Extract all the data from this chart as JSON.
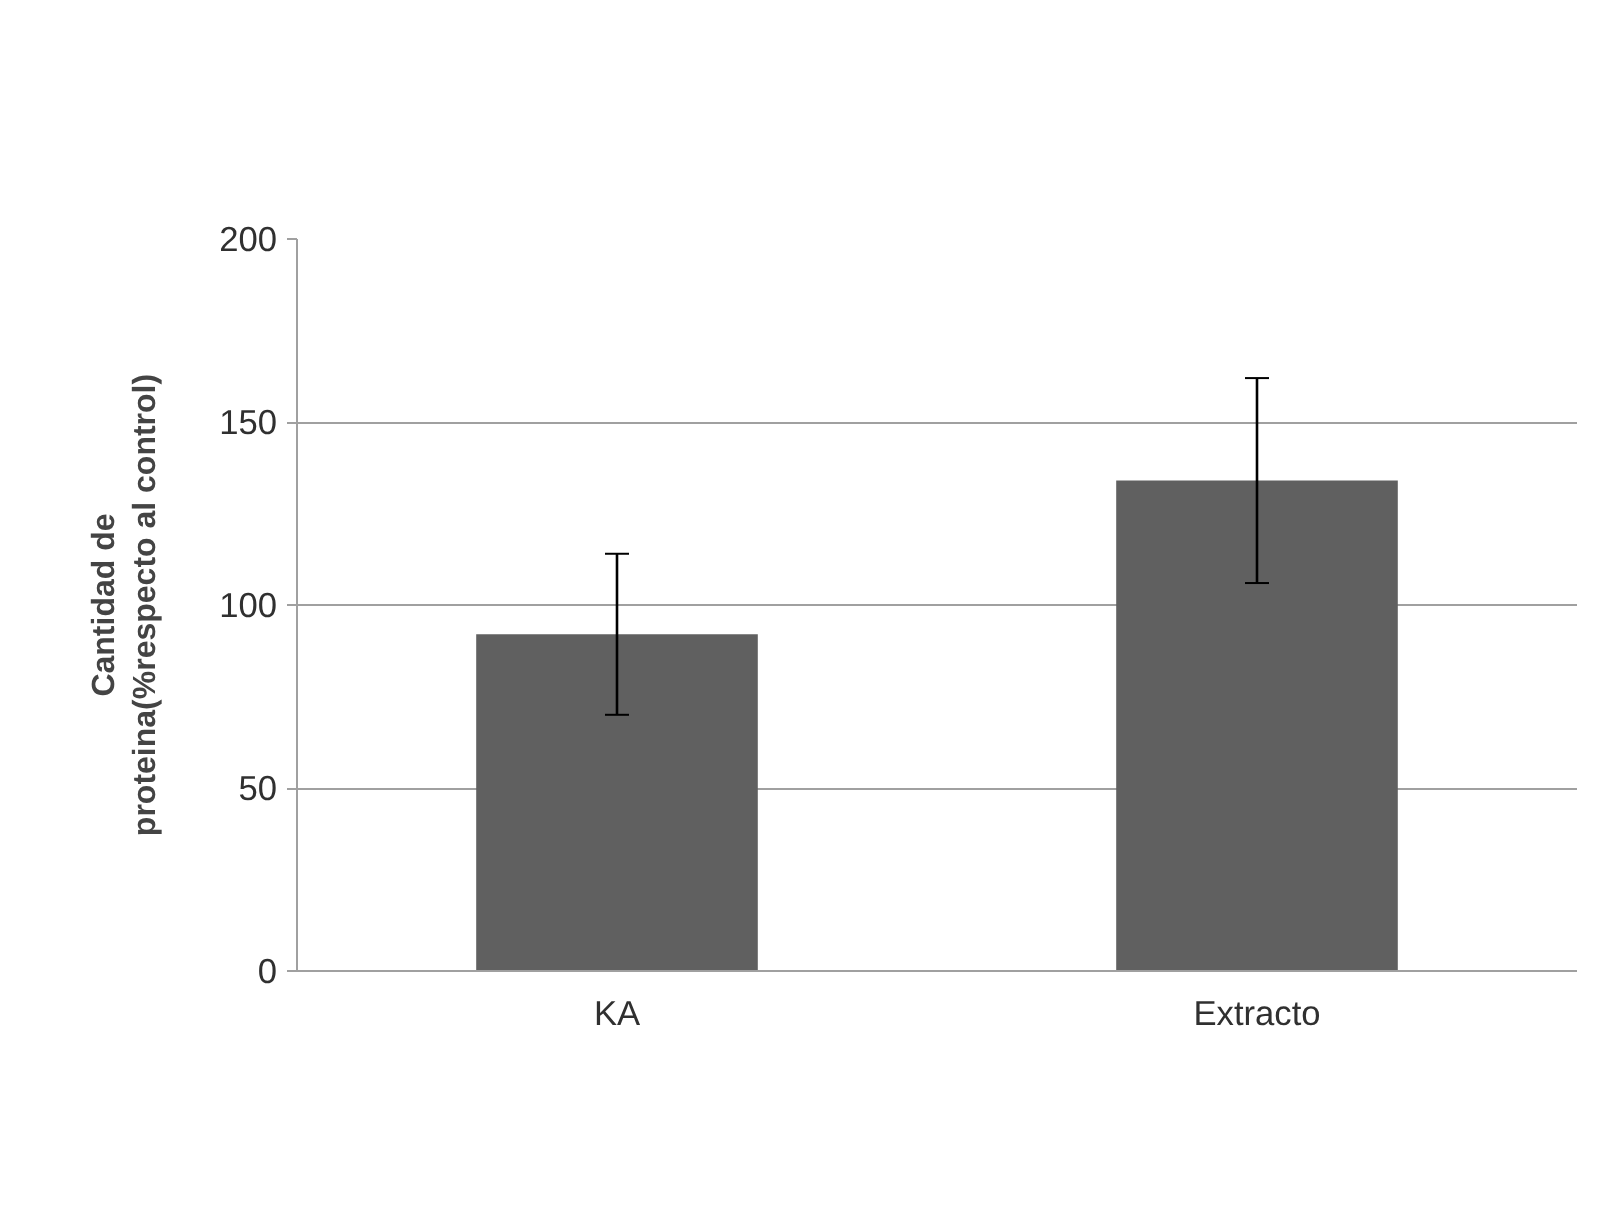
{
  "chart_data": {
    "type": "bar",
    "ylabel": "Cantidad de proteina(%respecto al control)",
    "categories": [
      "KA",
      "Extracto"
    ],
    "values": [
      92,
      134
    ],
    "errors": [
      22,
      28
    ],
    "color": "#606060",
    "ylim": [
      0,
      200
    ],
    "yticks": [
      0,
      50,
      100,
      150,
      200
    ],
    "grid": "y"
  }
}
